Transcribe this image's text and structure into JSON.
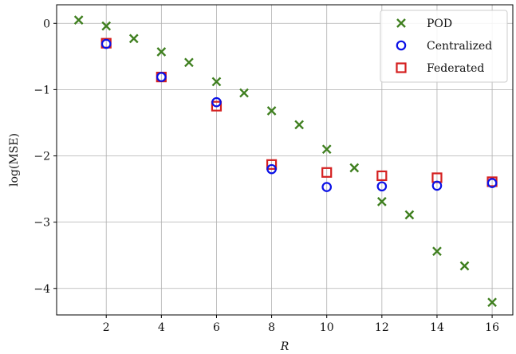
{
  "chart_data": {
    "type": "scatter",
    "xlabel": "R",
    "ylabel": "log(MSE)",
    "xlim": [
      0.2,
      16.75
    ],
    "ylim": [
      -4.4,
      0.28
    ],
    "xticks": [
      2,
      4,
      6,
      8,
      10,
      12,
      14,
      16
    ],
    "xtick_labels": [
      "2",
      "4",
      "6",
      "8",
      "10",
      "12",
      "14",
      "16"
    ],
    "yticks": [
      0,
      -1,
      -2,
      -3,
      -4
    ],
    "ytick_labels": [
      "0",
      "−1",
      "−2",
      "−3",
      "−4"
    ],
    "grid": true,
    "legend_position": "top-right",
    "series": [
      {
        "name": "POD",
        "marker": "x",
        "color": "#3f7f1f",
        "x": [
          1,
          2,
          3,
          4,
          5,
          6,
          7,
          8,
          9,
          10,
          11,
          12,
          13,
          14,
          15,
          16
        ],
        "y": [
          0.05,
          -0.04,
          -0.23,
          -0.43,
          -0.59,
          -0.88,
          -1.05,
          -1.32,
          -1.53,
          -1.9,
          -2.18,
          -2.69,
          -2.89,
          -3.44,
          -3.66,
          -4.21
        ]
      },
      {
        "name": "Centralized",
        "marker": "circle",
        "color": "#0a10e6",
        "x": [
          2,
          4,
          6,
          8,
          10,
          12,
          14,
          16
        ],
        "y": [
          -0.31,
          -0.81,
          -1.19,
          -2.2,
          -2.47,
          -2.46,
          -2.45,
          -2.41
        ]
      },
      {
        "name": "Federated",
        "marker": "square",
        "color": "#d41f1f",
        "x": [
          2,
          4,
          6,
          8,
          10,
          12,
          14,
          16
        ],
        "y": [
          -0.3,
          -0.81,
          -1.25,
          -2.13,
          -2.25,
          -2.3,
          -2.33,
          -2.39
        ]
      }
    ]
  }
}
